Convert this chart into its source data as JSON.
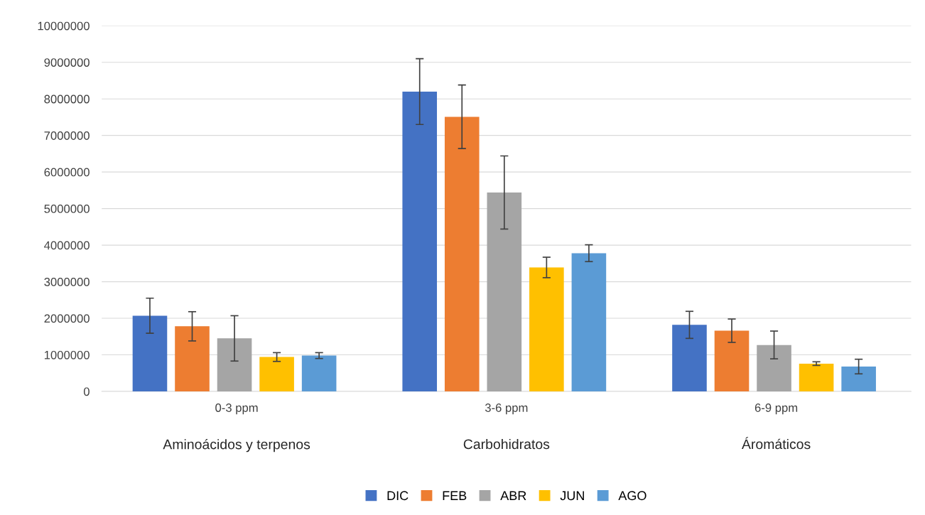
{
  "chart_data": {
    "type": "bar",
    "categories": [
      "0-3 ppm",
      "3-6 ppm",
      "6-9 ppm"
    ],
    "annotations": [
      "Aminoácidos y terpenos",
      "Carbohidratos",
      "Áromáticos"
    ],
    "series": [
      {
        "name": "DIC",
        "color": "#4472c4",
        "values": [
          2070000,
          8200000,
          1820000
        ],
        "errors": [
          480000,
          900000,
          370000
        ]
      },
      {
        "name": "FEB",
        "color": "#ed7d31",
        "values": [
          1780000,
          7510000,
          1660000
        ],
        "errors": [
          400000,
          870000,
          320000
        ]
      },
      {
        "name": "ABR",
        "color": "#a5a5a5",
        "values": [
          1450000,
          5440000,
          1270000
        ],
        "errors": [
          620000,
          1000000,
          380000
        ]
      },
      {
        "name": "JUN",
        "color": "#ffc000",
        "values": [
          940000,
          3390000,
          760000
        ],
        "errors": [
          120000,
          280000,
          50000
        ]
      },
      {
        "name": "AGO",
        "color": "#5b9bd5",
        "values": [
          980000,
          3780000,
          680000
        ],
        "errors": [
          80000,
          230000,
          200000
        ]
      }
    ],
    "ylim": [
      0,
      10000000
    ],
    "yticks": [
      0,
      1000000,
      2000000,
      3000000,
      4000000,
      5000000,
      6000000,
      7000000,
      8000000,
      9000000,
      10000000
    ],
    "grid": "y",
    "legend": "bottom"
  }
}
